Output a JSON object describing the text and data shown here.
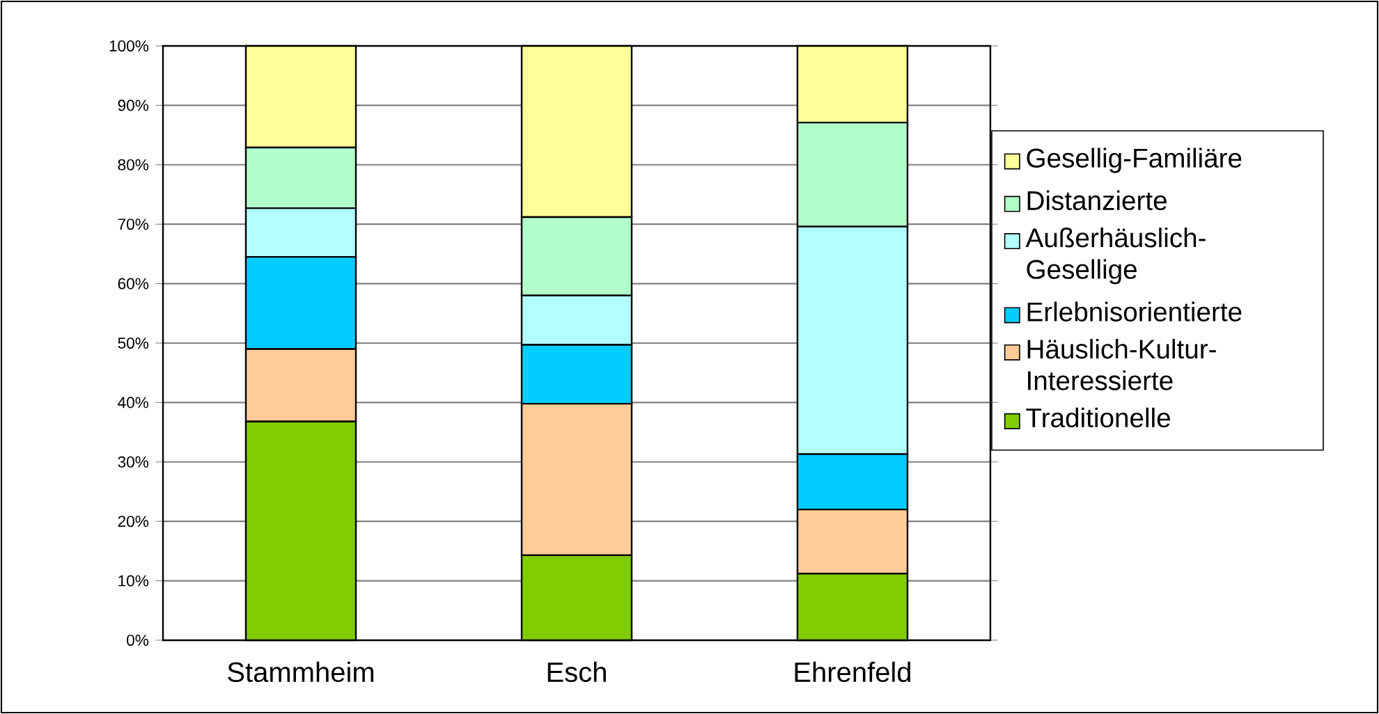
{
  "chart_data": {
    "type": "bar",
    "stacked": true,
    "categories": [
      "Stammheim",
      "Esch",
      "Ehrenfeld"
    ],
    "series": [
      {
        "name": "Traditionelle",
        "color": "#80cc00",
        "values": [
          36.8,
          14.3,
          11.2
        ]
      },
      {
        "name": "Häuslich-Kultur-Interessierte",
        "color": "#ffcc99",
        "values": [
          12.2,
          25.5,
          10.8
        ]
      },
      {
        "name": "Erlebnisorientierte",
        "color": "#00ccff",
        "values": [
          15.5,
          9.9,
          9.3
        ]
      },
      {
        "name": "Außerhäuslich-Gesellige",
        "color": "#b3ffff",
        "values": [
          8.2,
          8.3,
          38.3
        ]
      },
      {
        "name": "Distanzierte",
        "color": "#b3ffcc",
        "values": [
          10.2,
          13.2,
          17.5
        ]
      },
      {
        "name": "Gesellig-Familiäre",
        "color": "#ffff99",
        "values": [
          17.1,
          28.8,
          12.9
        ]
      }
    ],
    "ylim": [
      0,
      100
    ],
    "yticks": [
      {
        "value": 0,
        "label": "0%"
      },
      {
        "value": 10,
        "label": "10%"
      },
      {
        "value": 20,
        "label": "20%"
      },
      {
        "value": 30,
        "label": "30%"
      },
      {
        "value": 40,
        "label": "40%"
      },
      {
        "value": 50,
        "label": "50%"
      },
      {
        "value": 60,
        "label": "60%"
      },
      {
        "value": 70,
        "label": "70%"
      },
      {
        "value": 80,
        "label": "80%"
      },
      {
        "value": 90,
        "label": "90%"
      },
      {
        "value": 100,
        "label": "100%"
      }
    ],
    "grid": "y",
    "legend": "right"
  }
}
